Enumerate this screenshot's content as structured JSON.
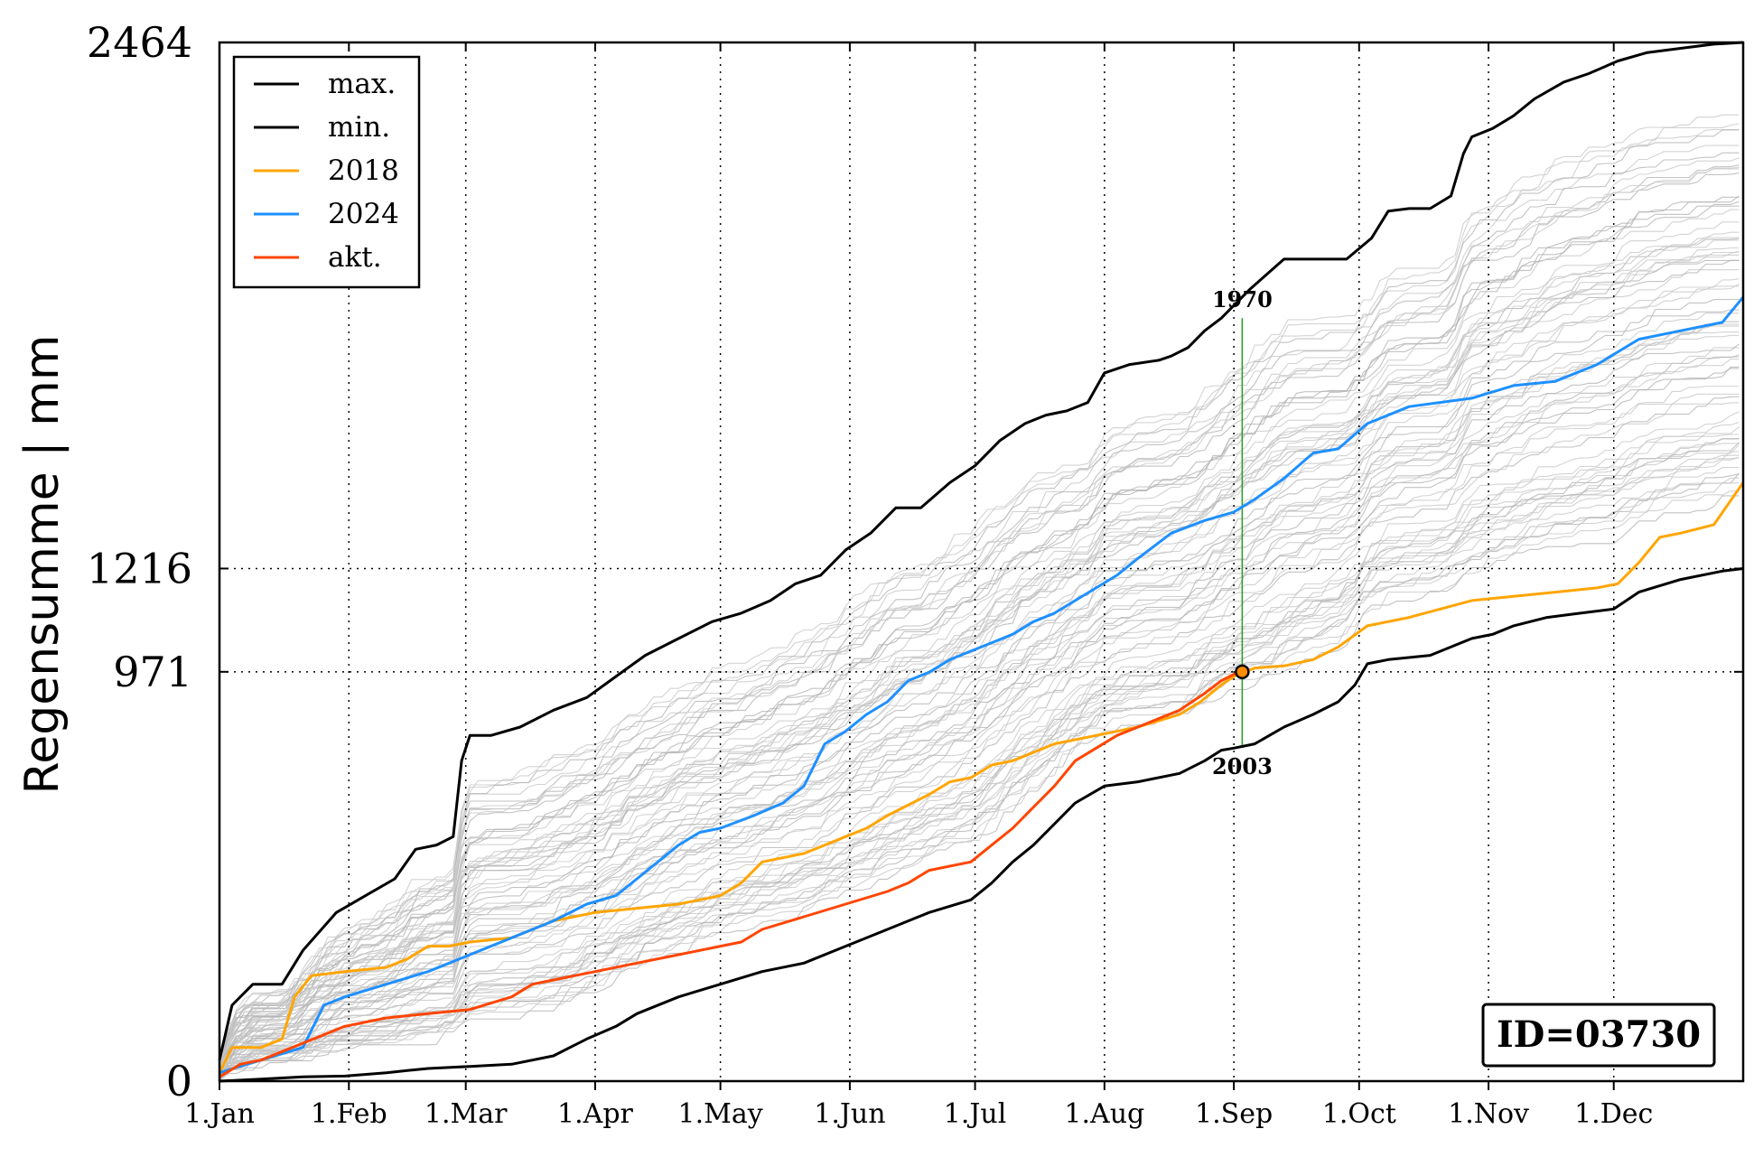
{
  "chart_data": {
    "type": "line",
    "title": "",
    "xlabel": "",
    "ylabel": "Regensumme | mm",
    "ylim": [
      0,
      2464
    ],
    "xlim": [
      0,
      365
    ],
    "y_ticks": [
      0,
      971,
      1216,
      2464
    ],
    "y_tick_labels": [
      "0",
      "971",
      "1216",
      "2464"
    ],
    "x_ticks": [
      0,
      31,
      59,
      90,
      120,
      151,
      181,
      212,
      243,
      273,
      304,
      334
    ],
    "x_tick_labels": [
      "1.Jan",
      "1.Feb",
      "1.Mar",
      "1.Apr",
      "1.May",
      "1.Jun",
      "1.Jul",
      "1.Aug",
      "1.Sep",
      "1.Oct",
      "1.Nov",
      "1.Dec"
    ],
    "grid": true,
    "grid_style": "dotted",
    "legend_position": "top-left",
    "id_label": "ID=03730",
    "current_point": {
      "x": 245,
      "y": 971
    },
    "annotations": [
      {
        "text": "1970",
        "x": 245,
        "y": 1810
      },
      {
        "text": "2003",
        "x": 245,
        "y": 795
      }
    ],
    "marker_line_color": "#2ca02c",
    "background_series_color": "#c8c8c8",
    "series": [
      {
        "name": "max.",
        "color": "#000000",
        "x": [
          0,
          3,
          8,
          15,
          20,
          28,
          35,
          42,
          47,
          52,
          56,
          58,
          60,
          65,
          72,
          80,
          88,
          95,
          102,
          110,
          118,
          125,
          132,
          138,
          144,
          150,
          156,
          162,
          168,
          175,
          181,
          187,
          193,
          198,
          203,
          208,
          212,
          218,
          225,
          228,
          232,
          236,
          240,
          243,
          247,
          255,
          262,
          270,
          276,
          280,
          285,
          290,
          295,
          298,
          300,
          305,
          310,
          315,
          322,
          328,
          335,
          342,
          350,
          358,
          365
        ],
        "y": [
          50,
          180,
          230,
          230,
          310,
          400,
          440,
          480,
          550,
          560,
          580,
          760,
          820,
          820,
          840,
          880,
          910,
          960,
          1010,
          1050,
          1090,
          1110,
          1140,
          1180,
          1200,
          1260,
          1300,
          1360,
          1360,
          1420,
          1460,
          1520,
          1560,
          1580,
          1590,
          1610,
          1680,
          1700,
          1710,
          1720,
          1740,
          1780,
          1810,
          1840,
          1880,
          1950,
          1950,
          1950,
          2000,
          2064,
          2070,
          2070,
          2100,
          2200,
          2240,
          2260,
          2290,
          2330,
          2370,
          2390,
          2420,
          2440,
          2450,
          2460,
          2464
        ]
      },
      {
        "name": "min.",
        "color": "#000000",
        "x": [
          0,
          10,
          20,
          30,
          40,
          45,
          50,
          60,
          70,
          80,
          88,
          95,
          100,
          110,
          120,
          130,
          140,
          150,
          160,
          170,
          180,
          185,
          190,
          195,
          200,
          205,
          212,
          220,
          230,
          236,
          240,
          243,
          248,
          255,
          262,
          268,
          272,
          275,
          280,
          290,
          300,
          305,
          310,
          318,
          326,
          334,
          340,
          350,
          360,
          365
        ],
        "y": [
          0,
          5,
          10,
          12,
          20,
          25,
          30,
          35,
          40,
          60,
          100,
          130,
          160,
          200,
          230,
          260,
          280,
          320,
          360,
          400,
          430,
          470,
          520,
          560,
          610,
          660,
          700,
          710,
          730,
          760,
          785,
          790,
          800,
          840,
          870,
          900,
          940,
          990,
          1000,
          1010,
          1050,
          1060,
          1080,
          1100,
          1110,
          1120,
          1160,
          1190,
          1210,
          1216
        ]
      },
      {
        "name": "2018",
        "color": "#ffa500",
        "x": [
          0,
          3,
          10,
          15,
          18,
          22,
          30,
          40,
          45,
          50,
          55,
          60,
          70,
          80,
          90,
          100,
          110,
          120,
          125,
          130,
          140,
          150,
          155,
          160,
          170,
          175,
          180,
          185,
          190,
          195,
          200,
          210,
          220,
          230,
          235,
          240,
          243,
          248,
          255,
          262,
          268,
          275,
          285,
          300,
          310,
          320,
          330,
          335,
          340,
          345,
          350,
          358,
          365
        ],
        "y": [
          20,
          80,
          80,
          100,
          200,
          250,
          260,
          270,
          290,
          320,
          320,
          330,
          340,
          380,
          400,
          410,
          420,
          440,
          470,
          520,
          540,
          580,
          600,
          630,
          680,
          710,
          720,
          750,
          760,
          780,
          800,
          820,
          840,
          870,
          900,
          940,
          960,
          980,
          985,
          1000,
          1030,
          1080,
          1100,
          1140,
          1150,
          1160,
          1170,
          1180,
          1230,
          1290,
          1300,
          1320,
          1420
        ]
      },
      {
        "name": "2024",
        "color": "#1e90ff",
        "x": [
          0,
          10,
          20,
          25,
          30,
          40,
          50,
          60,
          70,
          80,
          88,
          95,
          100,
          105,
          110,
          115,
          120,
          128,
          135,
          140,
          145,
          150,
          155,
          160,
          165,
          170,
          175,
          180,
          185,
          190,
          195,
          200,
          205,
          210,
          215,
          220,
          228,
          236,
          243,
          248,
          255,
          262,
          268,
          275,
          285,
          300,
          310,
          320,
          330,
          340,
          350,
          360,
          365
        ],
        "y": [
          20,
          50,
          80,
          180,
          200,
          230,
          260,
          300,
          340,
          380,
          420,
          440,
          480,
          520,
          560,
          590,
          600,
          630,
          660,
          700,
          800,
          830,
          870,
          900,
          950,
          970,
          1000,
          1020,
          1040,
          1060,
          1090,
          1110,
          1140,
          1170,
          1200,
          1240,
          1300,
          1330,
          1350,
          1380,
          1430,
          1490,
          1500,
          1560,
          1600,
          1620,
          1650,
          1660,
          1700,
          1760,
          1780,
          1800,
          1860
        ]
      },
      {
        "name": "akt.",
        "color": "#ff4500",
        "x": [
          0,
          5,
          10,
          15,
          20,
          25,
          30,
          40,
          50,
          60,
          70,
          75,
          80,
          90,
          100,
          110,
          120,
          125,
          130,
          140,
          150,
          160,
          165,
          170,
          180,
          185,
          190,
          195,
          200,
          205,
          210,
          215,
          220,
          225,
          230,
          236,
          240,
          243,
          245
        ],
        "y": [
          10,
          40,
          50,
          70,
          90,
          110,
          130,
          150,
          160,
          170,
          200,
          230,
          240,
          260,
          280,
          300,
          320,
          330,
          360,
          390,
          420,
          450,
          470,
          500,
          520,
          560,
          600,
          650,
          700,
          760,
          790,
          820,
          840,
          860,
          880,
          920,
          950,
          965,
          971
        ]
      }
    ]
  }
}
